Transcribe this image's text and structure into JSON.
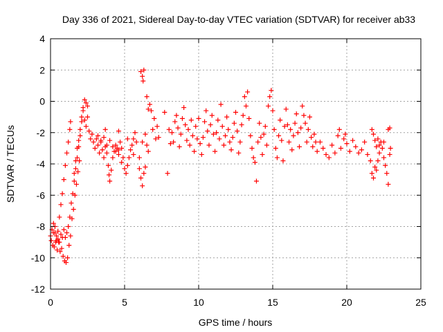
{
  "chart_data": {
    "type": "scatter",
    "title": "Day 336 of 2021, Sidereal Day-to-day VTEC variation (SDTVAR) for receiver ab33",
    "xlabel": "GPS time / hours",
    "ylabel": "SDTVAR / TECUs",
    "xlim": [
      0,
      25
    ],
    "ylim": [
      -12,
      4
    ],
    "xticks": [
      0,
      5,
      10,
      15,
      20,
      25
    ],
    "yticks": [
      -12,
      -10,
      -8,
      -6,
      -4,
      -2,
      0,
      2,
      4
    ],
    "grid": true,
    "marker": "+",
    "color": "#ff0000",
    "series": [
      {
        "name": "SDTVAR",
        "points": [
          [
            0.0,
            -8.6
          ],
          [
            0.1,
            -8.2
          ],
          [
            0.2,
            -7.8
          ],
          [
            0.3,
            -8.4
          ],
          [
            0.4,
            -8.9
          ],
          [
            0.5,
            -8.3
          ],
          [
            0.6,
            -7.4
          ],
          [
            0.7,
            -6.6
          ],
          [
            0.8,
            -5.9
          ],
          [
            0.9,
            -5.0
          ],
          [
            1.0,
            -4.1
          ],
          [
            1.1,
            -3.3
          ],
          [
            1.2,
            -2.6
          ],
          [
            1.3,
            -1.8
          ],
          [
            1.35,
            -1.3
          ],
          [
            0.05,
            -8.9
          ],
          [
            0.15,
            -9.2
          ],
          [
            0.25,
            -9.3
          ],
          [
            0.35,
            -9.0
          ],
          [
            0.45,
            -9.5
          ],
          [
            0.55,
            -9.0
          ],
          [
            0.65,
            -9.6
          ],
          [
            0.75,
            -9.4
          ],
          [
            0.85,
            -9.9
          ],
          [
            0.95,
            -10.2
          ],
          [
            1.05,
            -10.3
          ],
          [
            1.15,
            -10.0
          ],
          [
            1.25,
            -9.2
          ],
          [
            1.35,
            -8.6
          ],
          [
            1.45,
            -7.5
          ],
          [
            1.55,
            -6.9
          ],
          [
            1.65,
            -6.0
          ],
          [
            1.75,
            -5.3
          ],
          [
            1.85,
            -4.5
          ],
          [
            1.95,
            -3.8
          ],
          [
            0.2,
            -8.4
          ],
          [
            0.3,
            -8.0
          ],
          [
            0.4,
            -8.6
          ],
          [
            0.5,
            -8.8
          ],
          [
            0.6,
            -9.0
          ],
          [
            0.7,
            -8.5
          ],
          [
            0.8,
            -8.7
          ],
          [
            0.9,
            -8.2
          ],
          [
            1.0,
            -8.7
          ],
          [
            1.1,
            -8.4
          ],
          [
            1.2,
            -8.0
          ],
          [
            1.3,
            -7.4
          ],
          [
            1.4,
            -6.5
          ],
          [
            1.5,
            -5.9
          ],
          [
            1.6,
            -5.1
          ],
          [
            1.7,
            -4.3
          ],
          [
            1.8,
            -3.6
          ],
          [
            1.9,
            -2.9
          ],
          [
            2.0,
            -2.2
          ],
          [
            2.1,
            -1.3
          ],
          [
            2.2,
            -0.4
          ],
          [
            2.3,
            0.1
          ],
          [
            2.4,
            -0.1
          ],
          [
            2.5,
            -0.3
          ],
          [
            1.6,
            -4.6
          ],
          [
            1.7,
            -3.8
          ],
          [
            1.8,
            -3.0
          ],
          [
            1.9,
            -2.5
          ],
          [
            2.0,
            -1.8
          ],
          [
            2.1,
            -1.0
          ],
          [
            2.2,
            -0.6
          ],
          [
            2.3,
            -1.2
          ],
          [
            2.4,
            -1.6
          ],
          [
            2.5,
            -1.0
          ],
          [
            2.6,
            -1.9
          ],
          [
            2.7,
            -2.4
          ],
          [
            2.8,
            -2.1
          ],
          [
            2.9,
            -2.6
          ],
          [
            3.0,
            -3.0
          ],
          [
            3.1,
            -2.4
          ],
          [
            3.2,
            -2.8
          ],
          [
            3.3,
            -3.3
          ],
          [
            3.4,
            -2.6
          ],
          [
            3.5,
            -3.1
          ],
          [
            3.6,
            -3.6
          ],
          [
            3.7,
            -2.9
          ],
          [
            3.8,
            -3.3
          ],
          [
            3.9,
            -4.1
          ],
          [
            3.95,
            -4.7
          ],
          [
            4.0,
            -5.1
          ],
          [
            4.1,
            -4.4
          ],
          [
            4.2,
            -3.6
          ],
          [
            4.3,
            -3.2
          ],
          [
            4.4,
            -2.8
          ],
          [
            4.5,
            -3.0
          ],
          [
            4.6,
            -3.4
          ],
          [
            4.7,
            -2.6
          ],
          [
            4.8,
            -3.0
          ],
          [
            4.9,
            -3.6
          ],
          [
            3.2,
            -2.2
          ],
          [
            3.4,
            -2.5
          ],
          [
            3.6,
            -2.3
          ],
          [
            3.8,
            -2.8
          ],
          [
            4.0,
            -2.5
          ],
          [
            4.2,
            -2.9
          ],
          [
            4.4,
            -3.2
          ],
          [
            4.6,
            -3.1
          ],
          [
            4.8,
            -3.9
          ],
          [
            5.0,
            -4.3
          ],
          [
            5.1,
            -4.6
          ],
          [
            5.2,
            -4.1
          ],
          [
            5.3,
            -3.6
          ],
          [
            5.4,
            -3.1
          ],
          [
            5.5,
            -2.8
          ],
          [
            5.6,
            -2.4
          ],
          [
            5.7,
            -2.0
          ],
          [
            5.8,
            -2.6
          ],
          [
            3.7,
            -1.8
          ],
          [
            4.6,
            -1.9
          ],
          [
            5.2,
            -2.4
          ],
          [
            5.6,
            -3.4
          ],
          [
            6.0,
            -4.3
          ],
          [
            6.1,
            -4.9
          ],
          [
            6.2,
            -5.4
          ],
          [
            6.3,
            -4.6
          ],
          [
            6.4,
            -4.2
          ],
          [
            6.0,
            -3.6
          ],
          [
            6.2,
            -2.6
          ],
          [
            6.4,
            -2.1
          ],
          [
            6.5,
            -2.8
          ],
          [
            6.6,
            -3.2
          ],
          [
            6.1,
            1.9
          ],
          [
            6.2,
            1.6
          ],
          [
            6.3,
            2.0
          ],
          [
            6.25,
            1.3
          ],
          [
            6.5,
            0.3
          ],
          [
            6.6,
            -0.5
          ],
          [
            6.7,
            -0.2
          ],
          [
            6.8,
            -0.6
          ],
          [
            6.9,
            -1.8
          ],
          [
            7.0,
            -1.1
          ],
          [
            7.1,
            -2.4
          ],
          [
            7.2,
            -1.6
          ],
          [
            7.3,
            -2.3
          ],
          [
            7.7,
            -0.7
          ],
          [
            7.9,
            -4.6
          ],
          [
            8.0,
            -1.8
          ],
          [
            8.1,
            -2.7
          ],
          [
            8.2,
            -2.0
          ],
          [
            8.3,
            -2.6
          ],
          [
            8.4,
            -1.3
          ],
          [
            8.5,
            -0.9
          ],
          [
            8.6,
            -1.7
          ],
          [
            8.7,
            -2.9
          ],
          [
            8.8,
            -2.1
          ],
          [
            8.9,
            -1.1
          ],
          [
            9.0,
            -0.4
          ],
          [
            9.1,
            -1.5
          ],
          [
            9.2,
            -2.5
          ],
          [
            9.3,
            -1.8
          ],
          [
            9.4,
            -2.8
          ],
          [
            9.5,
            -1.2
          ],
          [
            9.6,
            -2.2
          ],
          [
            9.7,
            -3.2
          ],
          [
            9.8,
            -1.6
          ],
          [
            9.9,
            -2.4
          ],
          [
            10.0,
            -1.1
          ],
          [
            10.1,
            -2.7
          ],
          [
            10.2,
            -3.4
          ],
          [
            10.3,
            -2.3
          ],
          [
            10.4,
            -1.3
          ],
          [
            10.5,
            -0.6
          ],
          [
            10.6,
            -1.9
          ],
          [
            10.7,
            -2.8
          ],
          [
            10.8,
            -1.5
          ],
          [
            10.9,
            -0.9
          ],
          [
            11.0,
            -2.1
          ],
          [
            11.1,
            -3.2
          ],
          [
            11.2,
            -2.0
          ],
          [
            11.3,
            -1.2
          ],
          [
            11.4,
            -2.4
          ],
          [
            11.5,
            -0.2
          ],
          [
            11.6,
            -1.6
          ],
          [
            11.7,
            -2.8
          ],
          [
            11.8,
            -2.2
          ],
          [
            11.9,
            -1.0
          ],
          [
            12.0,
            -1.8
          ],
          [
            12.1,
            -2.6
          ],
          [
            12.2,
            -3.1
          ],
          [
            12.3,
            -2.3
          ],
          [
            12.4,
            -1.4
          ],
          [
            12.5,
            -0.7
          ],
          [
            12.6,
            -1.9
          ],
          [
            12.7,
            -3.3
          ],
          [
            12.8,
            -2.6
          ],
          [
            12.9,
            -1.5
          ],
          [
            13.0,
            -0.9
          ],
          [
            13.1,
            0.3
          ],
          [
            13.2,
            -0.3
          ],
          [
            13.3,
            0.6
          ],
          [
            13.4,
            -1.1
          ],
          [
            13.5,
            -2.2
          ],
          [
            13.6,
            -3.0
          ],
          [
            13.7,
            -3.6
          ],
          [
            13.8,
            -3.9
          ],
          [
            13.9,
            -5.1
          ],
          [
            14.0,
            -2.6
          ],
          [
            14.1,
            -1.4
          ],
          [
            14.2,
            -2.3
          ],
          [
            14.3,
            -3.4
          ],
          [
            14.4,
            -2.1
          ],
          [
            14.5,
            -1.6
          ],
          [
            14.6,
            -2.8
          ],
          [
            14.7,
            -0.3
          ],
          [
            14.8,
            0.3
          ],
          [
            14.9,
            0.7
          ],
          [
            15.0,
            -0.6
          ],
          [
            15.1,
            -1.8
          ],
          [
            15.2,
            -3.0
          ],
          [
            15.3,
            -3.6
          ],
          [
            15.4,
            -2.2
          ],
          [
            15.5,
            -1.2
          ],
          [
            15.6,
            -2.5
          ],
          [
            15.7,
            -3.8
          ],
          [
            15.8,
            -1.6
          ],
          [
            15.9,
            -0.5
          ],
          [
            16.0,
            -1.5
          ],
          [
            16.1,
            -2.6
          ],
          [
            16.2,
            -1.8
          ],
          [
            16.3,
            -3.1
          ],
          [
            16.4,
            -2.2
          ],
          [
            16.5,
            -1.4
          ],
          [
            16.6,
            -0.8
          ],
          [
            16.7,
            -2.0
          ],
          [
            16.8,
            -2.9
          ],
          [
            16.9,
            -1.7
          ],
          [
            17.0,
            -0.3
          ],
          [
            17.1,
            -0.9
          ],
          [
            17.2,
            -1.4
          ],
          [
            17.3,
            -2.6
          ],
          [
            17.4,
            -1.8
          ],
          [
            17.5,
            -1.0
          ],
          [
            17.6,
            -2.3
          ],
          [
            17.7,
            -2.9
          ],
          [
            17.8,
            -2.1
          ],
          [
            17.9,
            -2.6
          ],
          [
            18.0,
            -3.2
          ],
          [
            18.2,
            -2.6
          ],
          [
            18.4,
            -3.0
          ],
          [
            18.6,
            -3.4
          ],
          [
            18.8,
            -3.6
          ],
          [
            19.0,
            -2.8
          ],
          [
            19.2,
            -3.3
          ],
          [
            19.4,
            -2.2
          ],
          [
            19.5,
            -1.8
          ],
          [
            19.6,
            -3.0
          ],
          [
            19.8,
            -2.4
          ],
          [
            19.9,
            -2.1
          ],
          [
            20.0,
            -2.7
          ],
          [
            20.2,
            -3.2
          ],
          [
            20.4,
            -2.5
          ],
          [
            20.6,
            -2.9
          ],
          [
            20.8,
            -3.3
          ],
          [
            21.0,
            -3.1
          ],
          [
            21.2,
            -2.6
          ],
          [
            21.4,
            -3.4
          ],
          [
            21.6,
            -3.8
          ],
          [
            21.7,
            -4.6
          ],
          [
            21.8,
            -4.9
          ],
          [
            21.9,
            -4.2
          ],
          [
            22.0,
            -4.4
          ],
          [
            22.1,
            -3.8
          ],
          [
            22.2,
            -3.3
          ],
          [
            22.3,
            -2.6
          ],
          [
            22.4,
            -3.0
          ],
          [
            22.5,
            -3.6
          ],
          [
            22.6,
            -4.1
          ],
          [
            22.7,
            -4.6
          ],
          [
            22.8,
            -5.3
          ],
          [
            22.9,
            -3.4
          ],
          [
            22.95,
            -3.0
          ],
          [
            21.7,
            -1.8
          ],
          [
            21.8,
            -2.1
          ],
          [
            21.9,
            -2.5
          ],
          [
            22.0,
            -2.9
          ],
          [
            22.1,
            -2.4
          ],
          [
            22.2,
            -2.8
          ],
          [
            22.5,
            -2.6
          ],
          [
            22.8,
            -1.8
          ],
          [
            22.9,
            -1.7
          ]
        ]
      }
    ]
  }
}
